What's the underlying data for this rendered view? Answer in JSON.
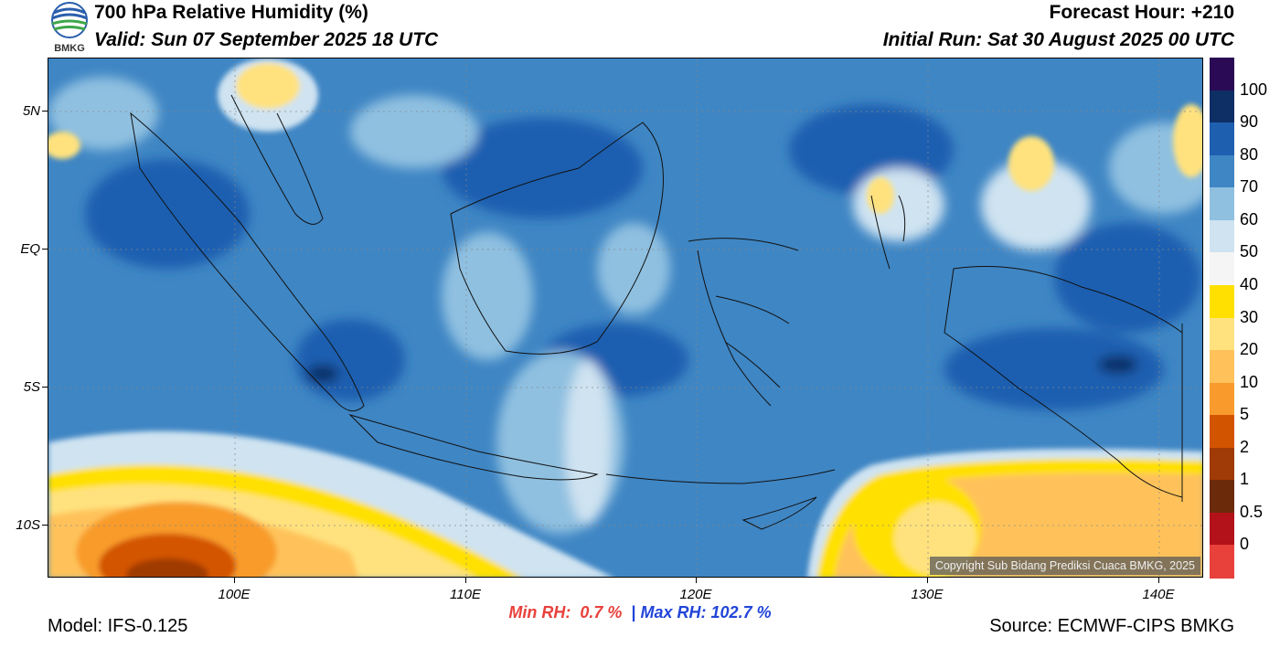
{
  "header": {
    "title": "700 hPa Relative Humidity (%)",
    "valid": "Valid: Sun 07 September 2025 18 UTC",
    "forecast_hour": "Forecast Hour: +210",
    "initial_run": "Initial Run: Sat 30 August 2025 00 UTC"
  },
  "logo": {
    "text": "BMKG"
  },
  "map": {
    "lat_labels": [
      "5N",
      "EQ",
      "5S",
      "10S"
    ],
    "lon_labels": [
      "100E",
      "110E",
      "120E",
      "130E",
      "140E"
    ],
    "copyright": "Copyright Sub Bidang Prediksi Cuaca BMKG, 2025"
  },
  "colorbar": {
    "labels": [
      "100",
      "90",
      "80",
      "70",
      "60",
      "50",
      "40",
      "30",
      "20",
      "10",
      "5",
      "2",
      "1",
      "0.5",
      "0"
    ],
    "colors": [
      "#2a0a55",
      "#0d2f66",
      "#1f5fb0",
      "#3f86c4",
      "#8fc0e0",
      "#cfe3f1",
      "#f5f5f5",
      "#ffe000",
      "#ffe27e",
      "#ffc25a",
      "#f89b2c",
      "#d35400",
      "#a03a06",
      "#6b2a0a",
      "#b3121a",
      "#e8413c"
    ]
  },
  "stats": {
    "min_label": "Min RH:",
    "min_value": "0.7 %",
    "separator": "|",
    "max_label": "Max RH:",
    "max_value": "102.7 %"
  },
  "footer": {
    "model": "Model: IFS-0.125",
    "source": "Source: ECMWF-CIPS BMKG"
  }
}
